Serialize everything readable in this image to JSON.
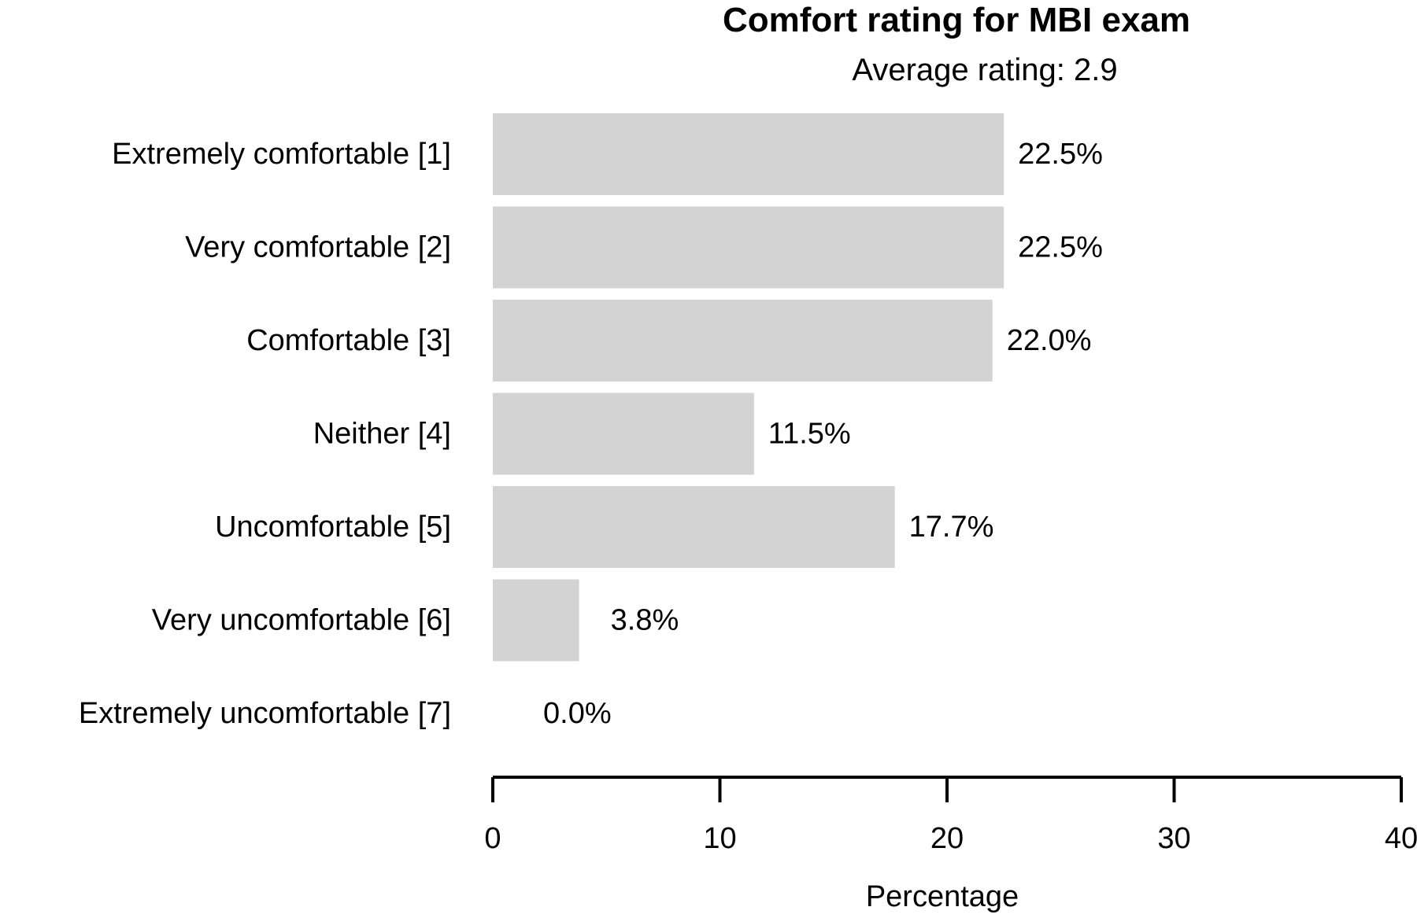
{
  "chart_data": {
    "type": "bar",
    "orientation": "horizontal",
    "title": "Comfort rating for MBI exam",
    "subtitle": "Average rating: 2.9",
    "categories": [
      "Extremely comfortable [1]",
      "Very comfortable [2]",
      "Comfortable [3]",
      "Neither [4]",
      "Uncomfortable [5]",
      "Very uncomfortable [6]",
      "Extremely uncomfortable [7]"
    ],
    "values": [
      22.5,
      22.5,
      22.0,
      11.5,
      17.7,
      3.8,
      0.0
    ],
    "data_labels": [
      "22.5%",
      "22.5%",
      "22.0%",
      "11.5%",
      "17.7%",
      "3.8%",
      "0.0%"
    ],
    "xlabel": "Percentage",
    "ylabel": "",
    "xlim": [
      0,
      40
    ],
    "xticks": [
      0,
      10,
      20,
      30,
      40
    ],
    "xtick_labels": [
      "0",
      "10",
      "20",
      "30",
      "40"
    ],
    "bar_color": "#d3d3d3",
    "grid": false,
    "legend": "none"
  }
}
